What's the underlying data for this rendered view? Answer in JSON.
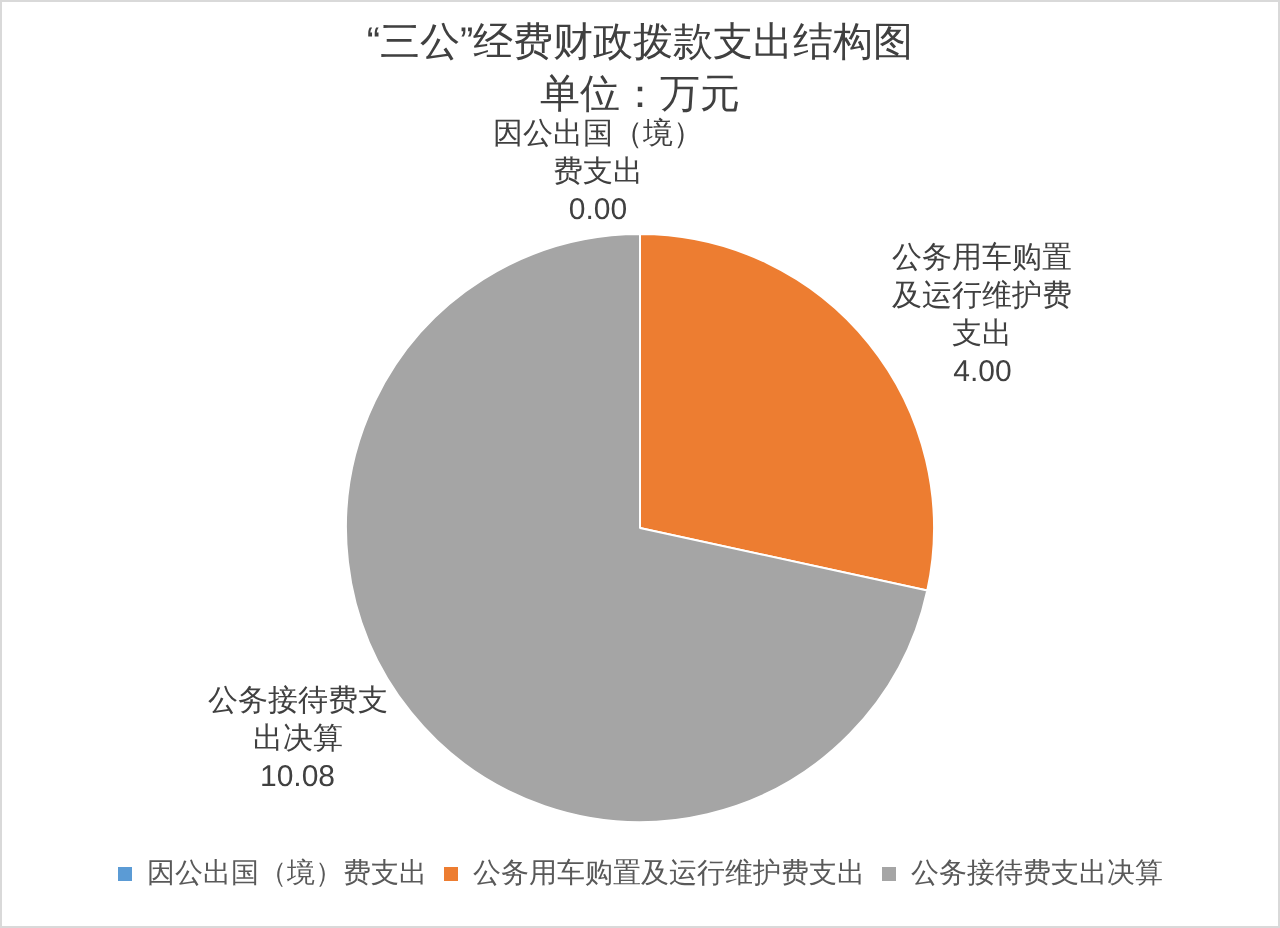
{
  "chart_data": {
    "type": "pie",
    "title": "“三公”经费财政拨款支出结构图",
    "subtitle": "单位：万元",
    "categories": [
      "因公出国（境）费支出",
      "公务用车购置及运行维护费支出",
      "公务接待费支出决算"
    ],
    "values": [
      0,
      4,
      10.08
    ],
    "colors": [
      "#5b9bd5",
      "#ed7d31",
      "#a5a5a5"
    ],
    "value_labels": [
      "0.00",
      "4.00",
      "10.08"
    ],
    "legend": "bottom"
  }
}
